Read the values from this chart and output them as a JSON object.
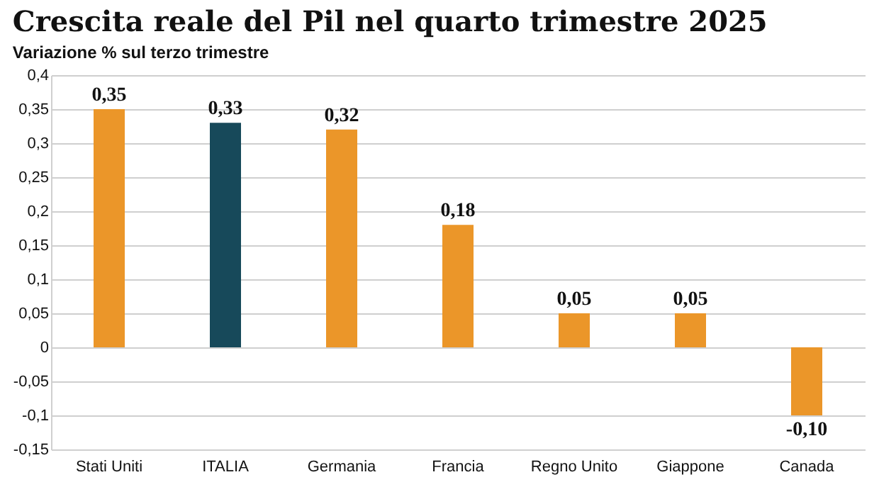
{
  "chart_data": {
    "type": "bar",
    "title": "Crescita reale del Pil nel quarto trimestre 2025",
    "subtitle": "Variazione % sul terzo trimestre",
    "categories": [
      "Stati Uniti",
      "ITALIA",
      "Germania",
      "Francia",
      "Regno Unito",
      "Giappone",
      "Canada"
    ],
    "values": [
      0.35,
      0.33,
      0.32,
      0.18,
      0.05,
      0.05,
      -0.1
    ],
    "colors": [
      "#eb9629",
      "#17495a",
      "#eb9629",
      "#eb9629",
      "#eb9629",
      "#eb9629",
      "#eb9629"
    ],
    "value_labels": [
      "0,35",
      "0,33",
      "0,32",
      "0,18",
      "0,05",
      "0,05",
      "-0,10"
    ],
    "ylim": [
      -0.15,
      0.4
    ],
    "yticks": [
      {
        "value": -0.15,
        "label": "-0,15"
      },
      {
        "value": -0.1,
        "label": "-0,1"
      },
      {
        "value": -0.05,
        "label": "-0,05"
      },
      {
        "value": 0,
        "label": "0"
      },
      {
        "value": 0.05,
        "label": "0,05"
      },
      {
        "value": 0.1,
        "label": "0,1"
      },
      {
        "value": 0.15,
        "label": "0,15"
      },
      {
        "value": 0.2,
        "label": "0,2"
      },
      {
        "value": 0.25,
        "label": "0,25"
      },
      {
        "value": 0.3,
        "label": "0,3"
      },
      {
        "value": 0.35,
        "label": "0,35"
      },
      {
        "value": 0.4,
        "label": "0,4"
      }
    ],
    "grid": "y",
    "legend": false
  }
}
